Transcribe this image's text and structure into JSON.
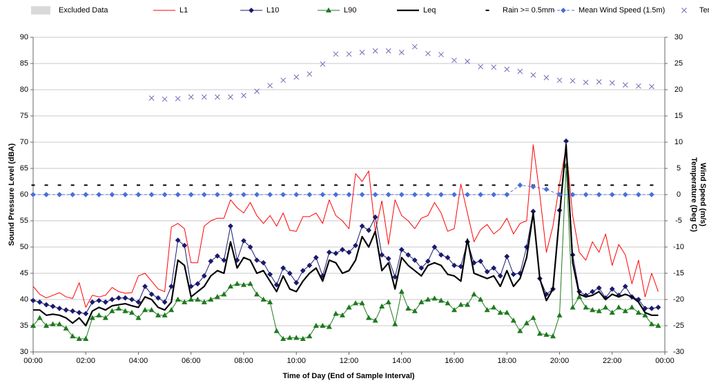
{
  "chart_data": {
    "type": "line",
    "xlabel": "Time of Day (End of Sample Interval)",
    "ylabel": "Sound Pressure Level (dBA)",
    "y2label": [
      "Wind Speed (m/s)",
      "Temperature (Deg C)"
    ],
    "excluded": {
      "name": "Excluded Data",
      "color": "#d9d9d9"
    },
    "x": [
      0,
      0.25,
      0.5,
      0.75,
      1,
      1.25,
      1.5,
      1.75,
      2,
      2.25,
      2.5,
      2.75,
      3,
      3.25,
      3.5,
      3.75,
      4,
      4.25,
      4.5,
      4.75,
      5,
      5.25,
      5.5,
      5.75,
      6,
      6.25,
      6.5,
      6.75,
      7,
      7.25,
      7.5,
      7.75,
      8,
      8.25,
      8.5,
      8.75,
      9,
      9.25,
      9.5,
      9.75,
      10,
      10.25,
      10.5,
      10.75,
      11,
      11.25,
      11.5,
      11.75,
      12,
      12.25,
      12.5,
      12.75,
      13,
      13.25,
      13.5,
      13.75,
      14,
      14.25,
      14.5,
      14.75,
      15,
      15.25,
      15.5,
      15.75,
      16,
      16.25,
      16.5,
      16.75,
      17,
      17.25,
      17.5,
      17.75,
      18,
      18.25,
      18.5,
      18.75,
      19,
      19.25,
      19.5,
      19.75,
      20,
      20.25,
      20.5,
      20.75,
      21,
      21.25,
      21.5,
      21.75,
      22,
      22.25,
      22.5,
      22.75,
      23,
      23.25,
      23.5,
      23.75
    ],
    "series": [
      {
        "name": "L1",
        "color": "#ff0000",
        "marker": "none",
        "width": 1,
        "axis": "y",
        "values": [
          42.5,
          41,
          40.3,
          40.8,
          41.3,
          40.5,
          40.2,
          43.2,
          38.5,
          40.8,
          40.5,
          40.8,
          42.3,
          41.5,
          41.2,
          41.3,
          44.5,
          45,
          43.5,
          42,
          41.5,
          53.8,
          54.5,
          53.5,
          47,
          47,
          54,
          55,
          55.5,
          55.5,
          59,
          57.5,
          56.5,
          58.5,
          56,
          54.5,
          56,
          54,
          56.5,
          53.2,
          53,
          55.8,
          55.8,
          56.5,
          54.5,
          59,
          56,
          55,
          53.5,
          64,
          62.5,
          64.5,
          53,
          58.8,
          50.5,
          59,
          56,
          55,
          53.5,
          55.5,
          56,
          58.5,
          56.5,
          53,
          53.5,
          62,
          56.5,
          51,
          53.3,
          54.3,
          52.5,
          53.5,
          55.5,
          52.5,
          54.5,
          55,
          69.5,
          60,
          49,
          54,
          62,
          69,
          56,
          49,
          47.5,
          51,
          49,
          52.5,
          46.5,
          50.5,
          48.5,
          43,
          47.5,
          40.5,
          45,
          41.5
        ]
      },
      {
        "name": "L10",
        "color": "#1a1a6e",
        "marker": "diamond",
        "width": 1,
        "axis": "y",
        "values": [
          39.8,
          39.5,
          39,
          38.7,
          38.3,
          38,
          37.8,
          37.5,
          37.3,
          39.5,
          39.8,
          39.5,
          40,
          40.3,
          40.3,
          40,
          39.5,
          42.5,
          41,
          40.3,
          39.5,
          42.5,
          51.3,
          50.3,
          42.5,
          43,
          44.5,
          47.3,
          48.3,
          47.5,
          54,
          47.5,
          51.2,
          50,
          47.5,
          47,
          44.8,
          42.8,
          46,
          45,
          43.2,
          45.5,
          46.5,
          48,
          44.5,
          49,
          48.8,
          49.5,
          49,
          50.3,
          54,
          53.2,
          55.7,
          48.5,
          47.8,
          44.3,
          49.5,
          48.5,
          47.5,
          46,
          47.3,
          50,
          48.5,
          48,
          46.5,
          46.3,
          51,
          47,
          47.3,
          45.3,
          46,
          44.5,
          48.2,
          44.8,
          45,
          50,
          56.8,
          44,
          41,
          42,
          57,
          70.2,
          48.5,
          41.5,
          40.8,
          41.5,
          42.2,
          40.3,
          42,
          40.8,
          42.5,
          40.5,
          40,
          38.3,
          38.3,
          38.5
        ]
      },
      {
        "name": "L90",
        "color": "#1e7a1e",
        "marker": "triangle",
        "width": 1,
        "axis": "y",
        "values": [
          35,
          36.5,
          35,
          35.3,
          35.3,
          34.5,
          33,
          32.5,
          32.5,
          36.5,
          37,
          36.5,
          37.8,
          38.3,
          37.8,
          37.5,
          36.5,
          38,
          38,
          37,
          37,
          38,
          40,
          39.5,
          40,
          40,
          39.5,
          40,
          40.5,
          41,
          42.5,
          43,
          42.8,
          43,
          41,
          40,
          39.5,
          34,
          32.5,
          32.7,
          32.7,
          32.5,
          33,
          35,
          35,
          34.8,
          37.3,
          37,
          38.5,
          39.3,
          39.3,
          36.5,
          36,
          38.7,
          39.5,
          35.3,
          41.5,
          38.3,
          37.8,
          39.5,
          40,
          40.2,
          39.8,
          39.3,
          38,
          39,
          39,
          41,
          40,
          38,
          38.5,
          37.5,
          37.5,
          36,
          34,
          35.5,
          36.5,
          33.5,
          33.3,
          33,
          37,
          65.5,
          38.5,
          40.5,
          38.5,
          38,
          37.8,
          38.5,
          37.5,
          38.5,
          37.8,
          38.5,
          37.5,
          37,
          35.3,
          35
        ]
      },
      {
        "name": "Leq",
        "color": "#000000",
        "marker": "none",
        "width": 2.2,
        "axis": "y",
        "values": [
          38,
          38,
          37,
          37.2,
          37,
          36.5,
          35.5,
          36.5,
          35,
          37.8,
          38.5,
          38,
          38.8,
          39,
          39.2,
          38.8,
          38.5,
          40.5,
          40,
          38.5,
          38,
          39.5,
          47.5,
          46.5,
          40.5,
          41.5,
          42.5,
          44.5,
          45.5,
          45,
          51,
          46,
          48,
          47.5,
          45,
          45.5,
          43.5,
          41.5,
          44.5,
          42,
          41.5,
          43.5,
          45,
          46,
          43.5,
          47.5,
          47,
          45,
          45.5,
          47.5,
          52,
          50,
          53,
          45.5,
          47,
          42,
          48,
          46.5,
          45.5,
          44.5,
          46.5,
          47,
          46.5,
          44.8,
          44.5,
          43.5,
          51.5,
          45,
          44.5,
          44,
          44.5,
          42.5,
          45.5,
          42.5,
          44,
          48,
          56.5,
          44,
          39.8,
          42,
          56,
          69.5,
          47,
          41,
          40.5,
          40.8,
          41.5,
          40,
          41,
          40.5,
          41,
          40.5,
          39.5,
          37.5,
          37,
          37
        ]
      },
      {
        "name": "Rain >= 0.5mm",
        "color": "#000000",
        "marker": "dash",
        "line": false,
        "axis": "y2",
        "x": [
          0,
          0.5,
          1,
          1.5,
          2,
          2.5,
          3,
          3.5,
          4,
          4.5,
          5,
          5.5,
          6,
          6.5,
          7,
          7.5,
          8,
          8.5,
          9,
          9.5,
          10,
          10.5,
          11,
          11.5,
          12,
          12.5,
          13,
          13.5,
          14,
          14.5,
          15,
          15.5,
          16,
          16.5,
          17,
          17.5,
          18,
          18.5,
          19,
          19.5,
          20,
          20.5,
          21,
          21.5,
          22,
          22.5,
          23,
          23.5
        ],
        "values": [
          1.8,
          1.8,
          1.8,
          1.8,
          1.8,
          1.8,
          1.8,
          1.8,
          1.8,
          1.8,
          1.8,
          1.8,
          1.8,
          1.8,
          1.8,
          1.8,
          1.8,
          1.8,
          1.8,
          1.8,
          1.8,
          1.8,
          1.8,
          1.8,
          1.8,
          1.8,
          1.8,
          1.8,
          1.8,
          1.8,
          1.8,
          1.8,
          1.8,
          1.8,
          1.8,
          1.8,
          1.8,
          1.8,
          1.8,
          1.8,
          1.8,
          1.8,
          1.8,
          1.8,
          1.8,
          1.8,
          1.8,
          1.8
        ]
      },
      {
        "name": "Mean Wind Speed (1.5m)",
        "color": "#4a6fd8",
        "marker": "diamond",
        "dashed": true,
        "width": 1,
        "axis": "y2",
        "x": [
          0,
          0.5,
          1,
          1.5,
          2,
          2.5,
          3,
          3.5,
          4,
          4.5,
          5,
          5.5,
          6,
          6.5,
          7,
          7.5,
          8,
          8.5,
          9,
          9.5,
          10,
          10.5,
          11,
          11.5,
          12,
          12.5,
          13,
          13.5,
          14,
          14.5,
          15,
          15.5,
          16,
          16.5,
          17,
          17.5,
          18,
          18.5,
          19,
          19.5,
          20,
          20.5,
          21,
          21.5,
          22,
          22.5,
          23,
          23.5
        ],
        "values": [
          0,
          0,
          0,
          0,
          0,
          0,
          0,
          0,
          0,
          0,
          0,
          0,
          0,
          0,
          0,
          0,
          0,
          0,
          0,
          0,
          0,
          0,
          0,
          0,
          0,
          0,
          0,
          0,
          0,
          0,
          0,
          0,
          0,
          0,
          0,
          0,
          0,
          1.8,
          1.5,
          1,
          0,
          0,
          0,
          0,
          0,
          0,
          0,
          0
        ]
      },
      {
        "name": "Temp",
        "color": "#6b6bb5",
        "marker": "x",
        "line": false,
        "axis": "y2",
        "x": [
          4.5,
          5,
          5.5,
          6,
          6.5,
          7,
          7.5,
          8,
          8.5,
          9,
          9.5,
          10,
          10.5,
          11,
          11.5,
          12,
          12.5,
          13,
          13.5,
          14,
          14.5,
          15,
          15.5,
          16,
          16.5,
          17,
          17.5,
          18,
          18.5,
          19,
          19.5,
          20,
          20.5,
          21,
          21.5,
          22,
          22.5,
          23,
          23.5
        ],
        "values": [
          18.4,
          18.2,
          18.3,
          18.6,
          18.6,
          18.6,
          18.6,
          18.9,
          19.7,
          20.8,
          21.8,
          22.4,
          23,
          24.9,
          26.8,
          26.8,
          27.1,
          27.4,
          27.4,
          27.1,
          28.2,
          26.9,
          26.7,
          25.6,
          25.4,
          24.4,
          24.3,
          23.9,
          23.5,
          22.8,
          22.3,
          21.8,
          21.7,
          21.4,
          21.5,
          21.3,
          20.9,
          20.7,
          20.6
        ]
      }
    ],
    "xlim": [
      0,
      24
    ],
    "xticks": [
      {
        "value": 0,
        "label": "00:00"
      },
      {
        "value": 2,
        "label": "02:00"
      },
      {
        "value": 4,
        "label": "04:00"
      },
      {
        "value": 6,
        "label": "06:00"
      },
      {
        "value": 8,
        "label": "08:00"
      },
      {
        "value": 10,
        "label": "10:00"
      },
      {
        "value": 12,
        "label": "12:00"
      },
      {
        "value": 14,
        "label": "14:00"
      },
      {
        "value": 16,
        "label": "16:00"
      },
      {
        "value": 18,
        "label": "18:00"
      },
      {
        "value": 20,
        "label": "20:00"
      },
      {
        "value": 22,
        "label": "22:00"
      },
      {
        "value": 24,
        "label": "00:00"
      }
    ],
    "ylim": [
      30,
      90
    ],
    "yticks": [
      30,
      35,
      40,
      45,
      50,
      55,
      60,
      65,
      70,
      75,
      80,
      85,
      90
    ],
    "y2lim": [
      -30,
      30
    ],
    "y2ticks": [
      -30,
      -25,
      -20,
      -15,
      -10,
      -5,
      0,
      5,
      10,
      15,
      20,
      25,
      30
    ],
    "grid": true,
    "legend": "top"
  }
}
